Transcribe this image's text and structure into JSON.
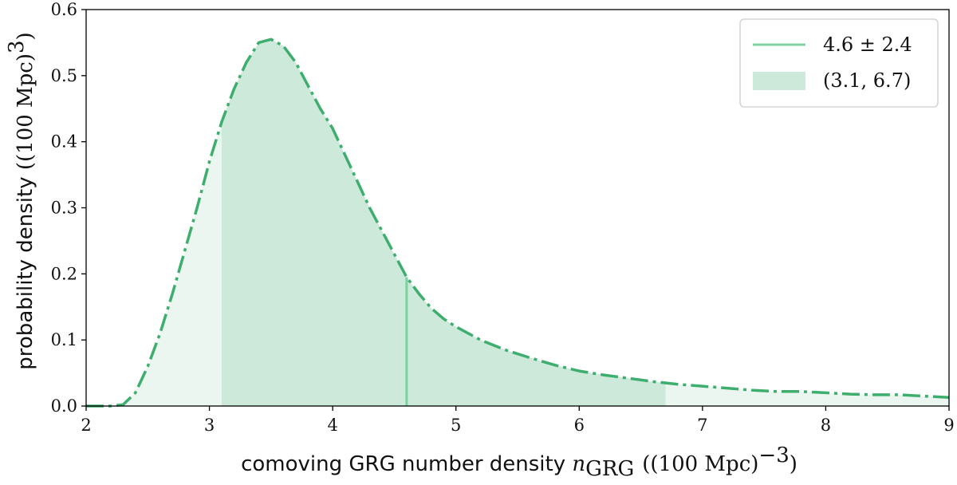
{
  "chart_data": {
    "type": "line",
    "title": "",
    "xlabel": {
      "text": "comoving GRG number density ",
      "symbol": "n",
      "symbol_sub": "GRG",
      "unit": "((100 Mpc)",
      "unit_exp": "−3",
      "unit_close": ")"
    },
    "ylabel": {
      "text": "probability density ",
      "unit": "((100 Mpc)",
      "unit_exp": "3",
      "unit_close": ")"
    },
    "xlim": [
      2,
      9
    ],
    "ylim": [
      0,
      0.6
    ],
    "xticks": [
      2,
      3,
      4,
      5,
      6,
      7,
      8,
      9
    ],
    "yticks": [
      0.0,
      0.1,
      0.2,
      0.3,
      0.4,
      0.5,
      0.6
    ],
    "ytick_labels": [
      "0.0",
      "0.1",
      "0.2",
      "0.3",
      "0.4",
      "0.5",
      "0.6"
    ],
    "grid": false,
    "legend_position": "top-right",
    "colors": {
      "curve": "#3dae6e",
      "median_line": "#7fd0a0",
      "interval_fill": "#cde9da",
      "tail_fill": "#ecf6f0",
      "axes": "#000000"
    },
    "series": [
      {
        "style": "dash-dot",
        "x": [
          2.0,
          2.1,
          2.2,
          2.3,
          2.4,
          2.5,
          2.6,
          2.7,
          2.8,
          2.9,
          3.0,
          3.1,
          3.2,
          3.3,
          3.4,
          3.5,
          3.6,
          3.7,
          3.8,
          3.9,
          4.0,
          4.1,
          4.2,
          4.3,
          4.4,
          4.5,
          4.6,
          4.7,
          4.8,
          4.9,
          5.0,
          5.2,
          5.4,
          5.6,
          5.8,
          6.0,
          6.2,
          6.4,
          6.6,
          6.8,
          7.0,
          7.2,
          7.4,
          7.6,
          7.8,
          8.0,
          8.2,
          8.4,
          8.6,
          8.8,
          9.0
        ],
        "y": [
          0.0,
          0.0,
          0.0,
          0.002,
          0.02,
          0.06,
          0.11,
          0.17,
          0.235,
          0.3,
          0.37,
          0.43,
          0.48,
          0.52,
          0.55,
          0.555,
          0.545,
          0.52,
          0.485,
          0.45,
          0.42,
          0.38,
          0.34,
          0.3,
          0.265,
          0.23,
          0.195,
          0.17,
          0.148,
          0.132,
          0.12,
          0.1,
          0.085,
          0.073,
          0.062,
          0.053,
          0.047,
          0.042,
          0.037,
          0.033,
          0.03,
          0.027,
          0.024,
          0.022,
          0.022,
          0.02,
          0.018,
          0.017,
          0.017,
          0.015,
          0.013
        ]
      }
    ],
    "median": 4.6,
    "interval": [
      3.1,
      6.7
    ],
    "legend": [
      {
        "type": "line",
        "label": "4.6 ± 2.4"
      },
      {
        "type": "patch",
        "label": "(3.1, 6.7)"
      }
    ]
  }
}
